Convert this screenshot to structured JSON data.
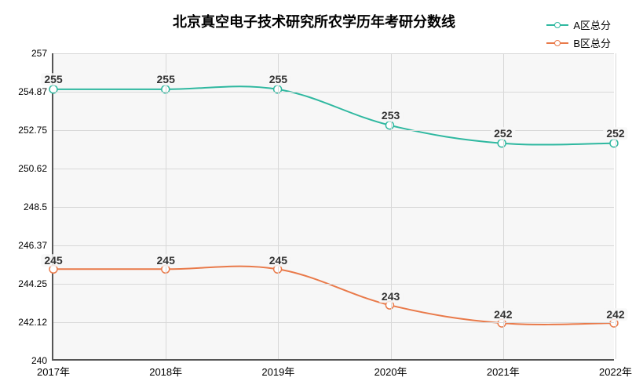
{
  "title": "北京真空电子技术研究所农学历年考研分数线",
  "background_color": "#ffffff",
  "plot_background_color": "#f7f7f7",
  "grid_color": "#d8d8d8",
  "axis_color": "#555555",
  "title_fontsize": 18,
  "label_fontsize": 12,
  "x_categories": [
    "2017年",
    "2018年",
    "2019年",
    "2020年",
    "2021年",
    "2022年"
  ],
  "y_min": 240,
  "y_max": 257,
  "y_ticks": [
    240,
    242.12,
    244.25,
    246.37,
    248.5,
    250.62,
    252.75,
    254.87,
    257
  ],
  "series": [
    {
      "name": "A区总分",
      "color": "#2fb8a0",
      "values": [
        255,
        255,
        255,
        253,
        252,
        252
      ],
      "line_width": 2,
      "marker": "circle",
      "marker_size": 5
    },
    {
      "name": "B区总分",
      "color": "#e97a4a",
      "values": [
        245,
        245,
        245,
        243,
        242,
        242
      ],
      "line_width": 2,
      "marker": "circle",
      "marker_size": 5
    }
  ],
  "legend_position": "top-right"
}
